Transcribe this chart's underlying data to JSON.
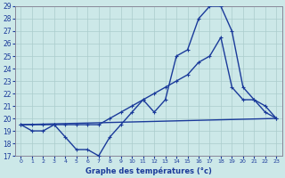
{
  "xlabel": "Graphe des températures (°c)",
  "ylim": [
    17,
    29
  ],
  "xlim": [
    -0.5,
    23.5
  ],
  "yticks": [
    17,
    18,
    19,
    20,
    21,
    22,
    23,
    24,
    25,
    26,
    27,
    28,
    29
  ],
  "xticks": [
    0,
    1,
    2,
    3,
    4,
    5,
    6,
    7,
    8,
    9,
    10,
    11,
    12,
    13,
    14,
    15,
    16,
    17,
    18,
    19,
    20,
    21,
    22,
    23
  ],
  "bg_color": "#cce8e8",
  "line_color": "#1a3a9a",
  "grid_color": "#aacccc",
  "line1_x": [
    0,
    23
  ],
  "line1_y": [
    19.5,
    20.0
  ],
  "line2_x": [
    0,
    1,
    2,
    3,
    4,
    5,
    6,
    7,
    8,
    9,
    10,
    11,
    12,
    13,
    14,
    15,
    16,
    17,
    18,
    19,
    20,
    21,
    22,
    23
  ],
  "line2_y": [
    19.5,
    19.0,
    19.0,
    19.5,
    18.5,
    17.5,
    17.5,
    17.0,
    18.5,
    19.5,
    20.5,
    21.5,
    20.5,
    21.5,
    25.0,
    25.5,
    28.0,
    29.0,
    29.0,
    27.0,
    22.5,
    21.5,
    21.0,
    20.0
  ],
  "line3_x": [
    0,
    1,
    2,
    3,
    4,
    5,
    6,
    7,
    8,
    9,
    10,
    11,
    12,
    13,
    14,
    15,
    16,
    17,
    18,
    19,
    20,
    21,
    22,
    23
  ],
  "line3_y": [
    19.5,
    19.5,
    19.5,
    19.5,
    19.5,
    19.5,
    19.5,
    19.5,
    20.0,
    20.5,
    21.0,
    21.5,
    22.0,
    22.5,
    23.0,
    23.5,
    24.5,
    25.0,
    26.5,
    22.5,
    21.5,
    21.5,
    20.5,
    20.0
  ]
}
